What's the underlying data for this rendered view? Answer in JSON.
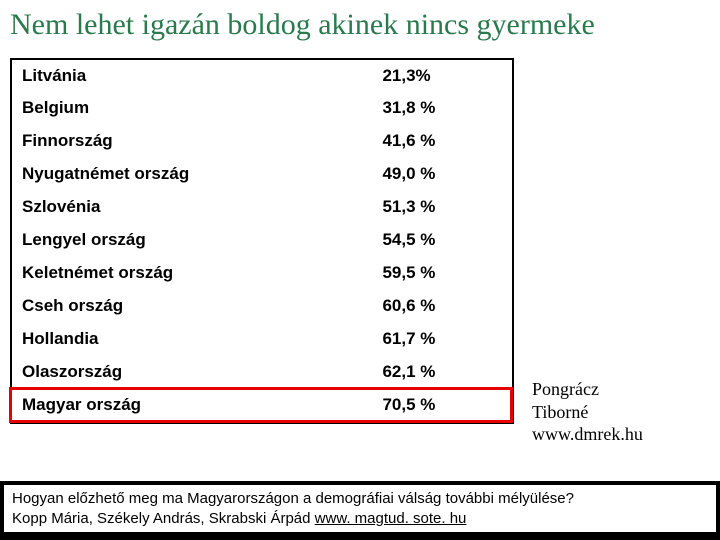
{
  "title": "Nem lehet igazán boldog akinek nincs gyermeke",
  "title_color": "#2a7a4e",
  "table": {
    "border_color": "#000000",
    "rows": [
      {
        "country": "Litvánia",
        "value": "21,3%"
      },
      {
        "country": "Belgium",
        "value": "31,8 %"
      },
      {
        "country": "Finnország",
        "value": "41,6 %"
      },
      {
        "country": "Nyugatnémet ország",
        "value": "49,0 %"
      },
      {
        "country": "Szlovénia",
        "value": "51,3 %"
      },
      {
        "country": "Lengyel ország",
        "value": "54,5 %"
      },
      {
        "country": "Keletnémet ország",
        "value": "59,5 %"
      },
      {
        "country": "Cseh ország",
        "value": "60,6 %"
      },
      {
        "country": "Hollandia",
        "value": "61,7 %"
      },
      {
        "country": "Olaszország",
        "value": "62,1 %"
      },
      {
        "country": "Magyar ország",
        "value": "70,5 %"
      }
    ],
    "highlight_row_index": 10,
    "highlight_color": "#e60000"
  },
  "attribution": {
    "name": "Pongrácz Tiborné",
    "site": "www.dmrek.hu"
  },
  "footer": {
    "question": "Hogyan előzhető meg ma Magyarországon a demográfiai válság további mélyülése?",
    "authors": "Kopp Mária, Székely András, Skrabski Árpád",
    "link": "www. magtud. sote. hu"
  }
}
